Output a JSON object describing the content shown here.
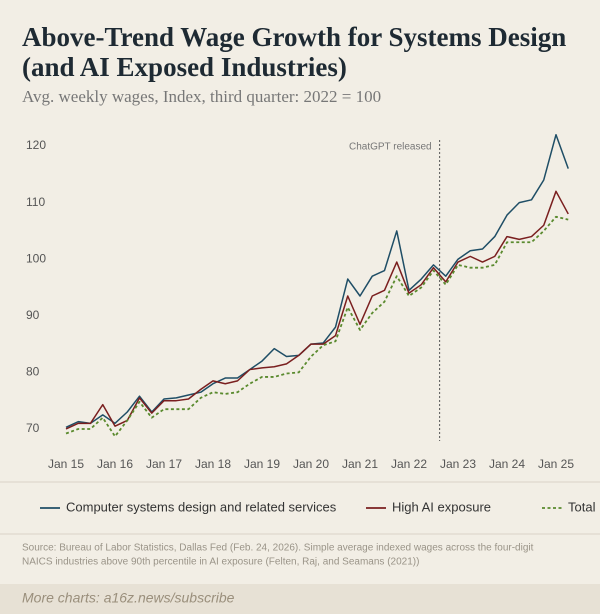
{
  "chart_data": {
    "type": "line",
    "title": "Above-Trend Wage Growth for Systems Design",
    "title_line2": "(and AI Exposed Industries)",
    "subtitle": "Avg. weekly wages, Index, third quarter: 2022 = 100",
    "categories": [
      "Jan 15",
      null,
      null,
      null,
      "Jan 16",
      null,
      null,
      null,
      "Jan 17",
      null,
      null,
      null,
      "Jan 18",
      null,
      null,
      null,
      "Jan 19",
      null,
      null,
      null,
      "Jan 20",
      null,
      null,
      null,
      "Jan 21",
      null,
      null,
      null,
      "Jan 22",
      null,
      null,
      null,
      "Jan 23",
      null,
      null,
      null,
      "Jan 24",
      null,
      null,
      null,
      "Jan 25",
      null
    ],
    "series": [
      {
        "name": "Computer systems design and related services",
        "color": "#1f4e66",
        "linestyle": "solid",
        "values": [
          70.3,
          71.3,
          71.0,
          72.5,
          71.0,
          73.0,
          75.8,
          73.0,
          75.3,
          75.5,
          76.0,
          76.5,
          78.0,
          79.0,
          79.0,
          80.5,
          82.0,
          84.2,
          82.8,
          83.0,
          85.0,
          85.2,
          88.0,
          96.5,
          93.5,
          97.0,
          98.0,
          105.0,
          94.5,
          96.5,
          99.0,
          97.0,
          100.0,
          101.5,
          101.8,
          104.0,
          107.8,
          110.0,
          110.5,
          114.0,
          122.0,
          116.0
        ]
      },
      {
        "name": "High AI exposure",
        "color": "#7a1f1f",
        "linestyle": "solid",
        "values": [
          70.0,
          71.0,
          71.0,
          74.3,
          70.5,
          71.5,
          75.5,
          72.8,
          75.0,
          75.0,
          75.3,
          77.0,
          78.5,
          78.0,
          78.5,
          80.5,
          80.8,
          81.0,
          81.5,
          83.0,
          85.0,
          85.0,
          86.5,
          93.5,
          88.5,
          93.5,
          94.5,
          99.5,
          94.0,
          95.5,
          98.5,
          96.0,
          99.5,
          100.5,
          99.5,
          100.5,
          104.0,
          103.5,
          104.0,
          106.0,
          112.0,
          108.0
        ]
      },
      {
        "name": "Total",
        "color": "#5a8a2e",
        "linestyle": "dotted",
        "values": [
          69.2,
          70.0,
          70.0,
          72.0,
          68.7,
          71.5,
          74.8,
          72.0,
          73.5,
          73.5,
          73.5,
          75.5,
          76.5,
          76.2,
          76.5,
          78.0,
          79.2,
          79.2,
          79.8,
          80.0,
          82.8,
          84.8,
          85.5,
          91.5,
          87.5,
          90.5,
          92.5,
          97.0,
          93.5,
          95.0,
          98.0,
          95.5,
          99.0,
          98.5,
          98.5,
          99.0,
          103.0,
          103.0,
          103.0,
          105.0,
          107.5,
          107.0
        ]
      }
    ],
    "ylim": [
      68,
      124
    ],
    "yticks": [
      70,
      80,
      90,
      100,
      110,
      120
    ],
    "grid": false,
    "annotation": {
      "text": "ChatGPT released",
      "x": 30.5
    },
    "source": "Source: Bureau of Labor Statistics, Dallas Fed (Feb. 24, 2026). Simple average indexed wages across the four-digit",
    "source_line2": "NAICS industries above 90th percentile in AI exposure (Felten, Raj, and Seamans (2021))",
    "footer": "More charts: a16z.news/subscribe"
  }
}
